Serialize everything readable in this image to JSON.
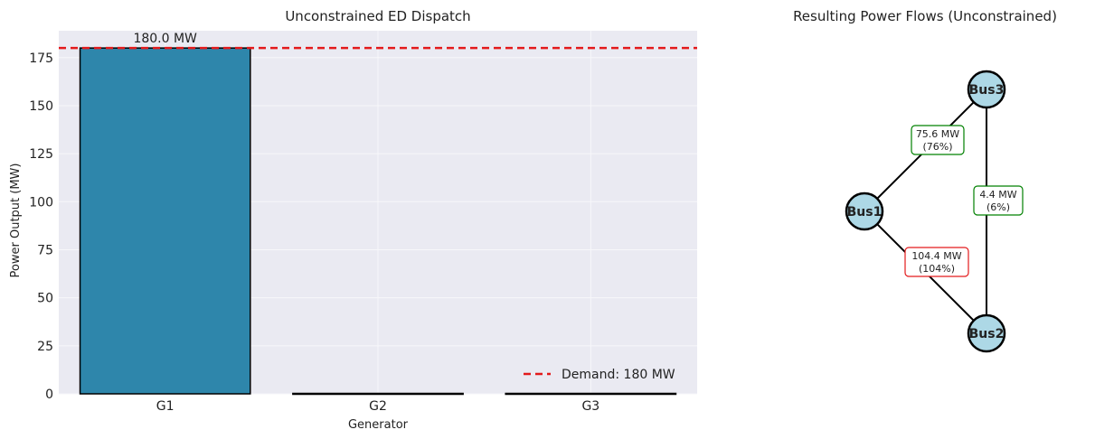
{
  "chart_data": [
    {
      "type": "bar",
      "title": "Unconstrained ED Dispatch",
      "xlabel": "Generator",
      "ylabel": "Power Output (MW)",
      "categories": [
        "G1",
        "G2",
        "G3"
      ],
      "values": [
        180.0,
        0,
        0
      ],
      "value_labels": [
        "180.0 MW",
        "",
        ""
      ],
      "ylim": [
        0,
        189
      ],
      "yticks": [
        0,
        25,
        50,
        75,
        100,
        125,
        150,
        175
      ],
      "grid": true,
      "reference_line": {
        "label": "Demand: 180 MW",
        "value": 180,
        "style": "dashed"
      },
      "legend_position": "bottom-right",
      "colors": {
        "bar": "#2e86ab",
        "bar_edge": "#000000",
        "demand": "#e31a1c",
        "plot_bg": "#eaeaf2",
        "grid": "#f7f7fa"
      }
    },
    {
      "type": "network",
      "title": "Resulting Power Flows (Unconstrained)",
      "nodes": [
        {
          "id": "Bus1",
          "label": "Bus1"
        },
        {
          "id": "Bus2",
          "label": "Bus2"
        },
        {
          "id": "Bus3",
          "label": "Bus3"
        }
      ],
      "edges": [
        {
          "from": "Bus1",
          "to": "Bus3",
          "flow": "75.6 MW",
          "loading": "(76%)",
          "status": "ok"
        },
        {
          "from": "Bus3",
          "to": "Bus2",
          "flow": "4.4 MW",
          "loading": "(6%)",
          "status": "ok"
        },
        {
          "from": "Bus1",
          "to": "Bus2",
          "flow": "104.4 MW",
          "loading": "(104%)",
          "status": "overloaded"
        }
      ],
      "colors": {
        "node_fill": "#add8e6",
        "node_stroke": "#000000",
        "ok": "#008000",
        "overloaded": "#e31a1c"
      }
    }
  ]
}
